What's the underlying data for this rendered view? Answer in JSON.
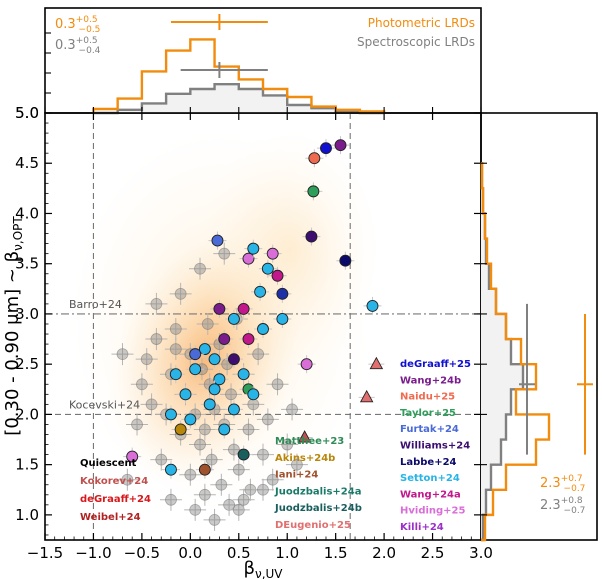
{
  "chart_data": [
    {
      "type": "scatter",
      "name": "main",
      "xlabel": "β_{ν,UV}",
      "ylabel": "[0.30 - 0.90 μm] ~ β_{ν,OPT}",
      "xlim": [
        -1.5,
        3.0
      ],
      "ylim": [
        0.75,
        5.0
      ],
      "xticks": [
        "−1.5",
        "−1.0",
        "−0.5",
        "0.0",
        "0.5",
        "1.0",
        "1.5",
        "2.0",
        "2.5",
        "3.0"
      ],
      "xtick_values": [
        -1.5,
        -1.0,
        -0.5,
        0.0,
        0.5,
        1.0,
        1.5,
        2.0,
        2.5,
        3.0
      ],
      "yticks": [
        "1.0",
        "1.5",
        "2.0",
        "2.5",
        "3.0",
        "3.5",
        "4.0",
        "4.5",
        "5.0"
      ],
      "ytick_values": [
        1.0,
        1.5,
        2.0,
        2.5,
        3.0,
        3.5,
        4.0,
        4.5,
        5.0
      ],
      "reference_lines": [
        {
          "label": "Barro+24",
          "orientation": "h",
          "value": 3.0,
          "style": "dashdot"
        },
        {
          "label": "Kocevski+24",
          "orientation": "h",
          "value": 2.0,
          "style": "dashed"
        },
        {
          "label": "",
          "orientation": "v",
          "value": -1.0,
          "style": "dashed"
        },
        {
          "label": "",
          "orientation": "v",
          "value": 1.65,
          "style": "dashed"
        }
      ],
      "photometric_points": [
        [
          -0.55,
          1.9
        ],
        [
          -0.5,
          2.3
        ],
        [
          -0.45,
          2.55
        ],
        [
          -0.4,
          2.1
        ],
        [
          -0.35,
          2.75
        ],
        [
          -0.3,
          1.55
        ],
        [
          -0.25,
          2.0
        ],
        [
          -0.2,
          2.4
        ],
        [
          -0.15,
          2.85
        ],
        [
          -0.1,
          1.8
        ],
        [
          -0.05,
          2.2
        ],
        [
          0.0,
          2.6
        ],
        [
          0.0,
          1.4
        ],
        [
          0.05,
          2.0
        ],
        [
          0.1,
          1.7
        ],
        [
          0.12,
          2.45
        ],
        [
          0.15,
          1.2
        ],
        [
          0.18,
          2.9
        ],
        [
          0.2,
          2.3
        ],
        [
          0.22,
          1.55
        ],
        [
          0.25,
          2.05
        ],
        [
          0.3,
          2.7
        ],
        [
          0.32,
          1.3
        ],
        [
          0.35,
          1.9
        ],
        [
          0.38,
          2.5
        ],
        [
          0.4,
          1.1
        ],
        [
          0.42,
          2.2
        ],
        [
          0.45,
          1.65
        ],
        [
          0.48,
          2.95
        ],
        [
          0.5,
          1.45
        ],
        [
          0.55,
          2.4
        ],
        [
          0.6,
          1.85
        ],
        [
          0.62,
          1.25
        ],
        [
          0.65,
          2.1
        ],
        [
          0.7,
          2.6
        ],
        [
          0.75,
          1.6
        ],
        [
          0.8,
          1.95
        ],
        [
          0.85,
          1.35
        ],
        [
          0.9,
          2.3
        ],
        [
          1.0,
          1.7
        ],
        [
          1.05,
          2.05
        ],
        [
          1.1,
          1.5
        ],
        [
          -0.65,
          1.35
        ],
        [
          -0.7,
          2.6
        ],
        [
          -0.2,
          1.15
        ],
        [
          0.05,
          1.05
        ],
        [
          0.25,
          0.95
        ],
        [
          0.5,
          1.05
        ],
        [
          -0.1,
          3.2
        ],
        [
          0.1,
          3.45
        ],
        [
          -0.35,
          3.1
        ],
        [
          0.35,
          3.6
        ],
        [
          -0.15,
          2.65
        ],
        [
          0.15,
          1.85
        ],
        [
          0.55,
          1.15
        ],
        [
          0.75,
          1.25
        ]
      ],
      "spectroscopic_points": [
        {
          "x": 1.4,
          "y": 4.65,
          "color": "#1010d0",
          "ref": "deGraaff+25"
        },
        {
          "x": 1.55,
          "y": 4.68,
          "color": "#7a1c8c",
          "ref": "Wang+24b"
        },
        {
          "x": 1.28,
          "y": 4.55,
          "color": "#f06a50",
          "ref": "Naidu+25"
        },
        {
          "x": 1.27,
          "y": 4.22,
          "color": "#2e9e5a",
          "ref": "Taylor+25"
        },
        {
          "x": 1.25,
          "y": 3.77,
          "color": "#3d0d70",
          "ref": "Williams+24"
        },
        {
          "x": 1.6,
          "y": 3.53,
          "color": "#0a0a6a",
          "ref": "Labbe+24"
        },
        {
          "x": 0.28,
          "y": 3.73,
          "color": "#4a6ad8",
          "ref": "Furtak+24"
        },
        {
          "x": 0.9,
          "y": 3.38,
          "color": "#c2188c",
          "ref": "Wang+24a"
        },
        {
          "x": 0.95,
          "y": 3.2,
          "color": "#1f2fa6",
          "ref": "Labbe+24"
        },
        {
          "x": 0.6,
          "y": 3.55,
          "color": "#da6ed8",
          "ref": "Hviding+25"
        },
        {
          "x": 1.88,
          "y": 3.08,
          "color": "#28b4e6",
          "ref": "Setton+24"
        },
        {
          "x": 0.55,
          "y": 3.05,
          "color": "#c2188c",
          "ref": "Wang+24a"
        },
        {
          "x": 0.72,
          "y": 3.22,
          "color": "#28b4e6",
          "ref": "Setton+24"
        },
        {
          "x": 0.85,
          "y": 3.6,
          "color": "#da6ed8",
          "ref": "Hviding+25"
        },
        {
          "x": 0.8,
          "y": 3.45,
          "color": "#28b4e6",
          "ref": "Setton+24"
        },
        {
          "x": 0.65,
          "y": 3.65,
          "color": "#28b4e6",
          "ref": "Setton+24"
        },
        {
          "x": 0.45,
          "y": 2.95,
          "color": "#28b4e6",
          "ref": "Setton+24"
        },
        {
          "x": 0.75,
          "y": 2.85,
          "color": "#28b4e6",
          "ref": "Setton+24"
        },
        {
          "x": 0.95,
          "y": 2.95,
          "color": "#28b4e6",
          "ref": "Setton+24"
        },
        {
          "x": 0.35,
          "y": 2.75,
          "color": "#7a1c8c",
          "ref": "Wang+24b"
        },
        {
          "x": 0.15,
          "y": 2.65,
          "color": "#28b4e6",
          "ref": "Setton+24"
        },
        {
          "x": 0.6,
          "y": 2.75,
          "color": "#c2188c",
          "ref": "Wang+24a"
        },
        {
          "x": 0.25,
          "y": 2.55,
          "color": "#28b4e6",
          "ref": "Setton+24"
        },
        {
          "x": 0.45,
          "y": 2.55,
          "color": "#3d0d70",
          "ref": "Williams+24"
        },
        {
          "x": 0.05,
          "y": 2.45,
          "color": "#28b4e6",
          "ref": "Setton+24"
        },
        {
          "x": -0.15,
          "y": 2.4,
          "color": "#28b4e6",
          "ref": "Setton+24"
        },
        {
          "x": 0.3,
          "y": 2.35,
          "color": "#28b4e6",
          "ref": "Setton+24"
        },
        {
          "x": -0.05,
          "y": 2.2,
          "color": "#28b4e6",
          "ref": "Setton+24"
        },
        {
          "x": 0.2,
          "y": 2.1,
          "color": "#28b4e6",
          "ref": "Setton+24"
        },
        {
          "x": 0.45,
          "y": 2.05,
          "color": "#28b4e6",
          "ref": "Setton+24"
        },
        {
          "x": -0.2,
          "y": 2.0,
          "color": "#28b4e6",
          "ref": "Setton+24"
        },
        {
          "x": 0.0,
          "y": 1.95,
          "color": "#28b4e6",
          "ref": "Setton+24"
        },
        {
          "x": 0.35,
          "y": 1.85,
          "color": "#28b4e6",
          "ref": "Setton+24"
        },
        {
          "x": 0.6,
          "y": 2.25,
          "color": "#2e9e5a",
          "ref": "Matthee+23"
        },
        {
          "x": 0.65,
          "y": 2.2,
          "color": "#28b4e6",
          "ref": "Setton+24"
        },
        {
          "x": -0.1,
          "y": 1.85,
          "color": "#b8860b",
          "ref": "Akins+24b"
        },
        {
          "x": -0.2,
          "y": 1.45,
          "color": "#28b4e6",
          "ref": "Setton+24"
        },
        {
          "x": 0.15,
          "y": 1.45,
          "color": "#a0522d",
          "ref": "Iani+24"
        },
        {
          "x": 0.55,
          "y": 1.6,
          "color": "#1a5e5e",
          "ref": "Juodzbalis+24b"
        },
        {
          "x": -0.6,
          "y": 1.58,
          "color": "#da6ed8",
          "ref": "Hviding+25"
        },
        {
          "x": 1.2,
          "y": 2.5,
          "color": "#da6ed8",
          "ref": "Hviding+25"
        },
        {
          "x": 0.25,
          "y": 2.25,
          "color": "#28b4e6",
          "ref": "Setton+24"
        },
        {
          "x": 0.05,
          "y": 2.6,
          "color": "#4a6ad8",
          "ref": "Furtak+24"
        },
        {
          "x": 0.55,
          "y": 2.4,
          "color": "#28b4e6",
          "ref": "Setton+24"
        },
        {
          "x": 0.3,
          "y": 3.05,
          "color": "#7a1c8c",
          "ref": "Wang+24b"
        }
      ],
      "triangle_points": [
        {
          "x": 1.92,
          "y": 2.5,
          "color": "#e07070",
          "ref": "DEugenio+25"
        },
        {
          "x": 1.82,
          "y": 2.17,
          "color": "#e07070",
          "ref": "DEugenio+25"
        },
        {
          "x": 1.18,
          "y": 1.77,
          "color": "#c0504d",
          "ref": "Kokorev+24"
        }
      ],
      "legend_left": [
        {
          "label": "Quiescent",
          "color": "#000000"
        },
        {
          "label": "Kokorev+24",
          "color": "#c0504d"
        },
        {
          "label": "deGraaff+24",
          "color": "#d7191c"
        },
        {
          "label": "Weibel+24",
          "color": "#b22222"
        }
      ],
      "legend_middle": [
        {
          "label": "Matthee+23",
          "color": "#2e8b57"
        },
        {
          "label": "Akins+24b",
          "color": "#b8860b"
        },
        {
          "label": "Iani+24",
          "color": "#a0522d"
        },
        {
          "label": "Juodzbalis+24a",
          "color": "#1a7a6a"
        },
        {
          "label": "Juodzbalis+24b",
          "color": "#1a5e5e"
        },
        {
          "label": "DEugenio+25",
          "color": "#e07070"
        }
      ],
      "legend_right": [
        {
          "label": "deGraaff+25",
          "color": "#1010d0"
        },
        {
          "label": "Wang+24b",
          "color": "#7a1c8c"
        },
        {
          "label": "Naidu+25",
          "color": "#f06a50"
        },
        {
          "label": "Taylor+25",
          "color": "#2e9e5a"
        },
        {
          "label": "Furtak+24",
          "color": "#4a6ad8"
        },
        {
          "label": "Williams+24",
          "color": "#3d0d70"
        },
        {
          "label": "Labbe+24",
          "color": "#0a0a6a"
        },
        {
          "label": "Setton+24",
          "color": "#28b4e6"
        },
        {
          "label": "Wang+24a",
          "color": "#c2188c"
        },
        {
          "label": "Hviding+25",
          "color": "#da6ed8"
        },
        {
          "label": "Killi+24",
          "color": "#9b30c8"
        }
      ]
    },
    {
      "type": "histogram",
      "name": "top",
      "axis": "β_{ν,UV}",
      "bin_edges": [
        -1.0,
        -0.75,
        -0.5,
        -0.25,
        0.0,
        0.25,
        0.5,
        0.75,
        1.0,
        1.25,
        1.5,
        1.75,
        2.0
      ],
      "series": [
        {
          "name": "Photometric LRDs",
          "color": "#f28c0f",
          "counts": [
            0.05,
            0.18,
            0.52,
            0.78,
            0.92,
            0.58,
            0.42,
            0.3,
            0.2,
            0.08,
            0.04,
            0.02
          ]
        },
        {
          "name": "Spectroscopic LRDs",
          "color": "#808080",
          "counts": [
            0.0,
            0.04,
            0.12,
            0.24,
            0.3,
            0.36,
            0.3,
            0.22,
            0.1,
            0.06,
            0.02,
            0.0
          ]
        }
      ],
      "summary": [
        {
          "value": "0.3",
          "sup": "+0.5",
          "sub": "−0.5",
          "color": "#f28c0f",
          "median": 0.3,
          "err_low": 0.5,
          "err_high": 0.5
        },
        {
          "value": "0.3",
          "sup": "+0.5",
          "sub": "−0.4",
          "color": "#808080",
          "median": 0.3,
          "err_low": 0.4,
          "err_high": 0.5
        }
      ]
    },
    {
      "type": "histogram",
      "name": "right",
      "axis": "β_{ν,OPT}",
      "orientation": "horizontal",
      "bin_edges": [
        0.75,
        1.0,
        1.25,
        1.5,
        1.75,
        2.0,
        2.25,
        2.5,
        2.75,
        3.0,
        3.25,
        3.5,
        3.75,
        4.0,
        4.25,
        4.5
      ],
      "series": [
        {
          "name": "Photometric LRDs",
          "color": "#f28c0f",
          "counts": [
            0.04,
            0.12,
            0.25,
            0.55,
            0.68,
            0.35,
            0.55,
            0.4,
            0.25,
            0.15,
            0.1,
            0.06,
            0.04,
            0.02,
            0.01
          ]
        },
        {
          "name": "Spectroscopic LRDs",
          "color": "#808080",
          "counts": [
            0.02,
            0.05,
            0.1,
            0.2,
            0.25,
            0.3,
            0.42,
            0.3,
            0.25,
            0.15,
            0.08,
            0.05,
            0.04,
            0.02,
            0.01
          ]
        }
      ],
      "summary": [
        {
          "value": "2.3",
          "sup": "+0.7",
          "sub": "−0.7",
          "color": "#f28c0f",
          "median": 2.3,
          "err_low": 0.7,
          "err_high": 0.7
        },
        {
          "value": "2.3",
          "sup": "+0.8",
          "sub": "−0.7",
          "color": "#808080",
          "median": 2.3,
          "err_low": 0.7,
          "err_high": 0.8
        }
      ]
    }
  ]
}
